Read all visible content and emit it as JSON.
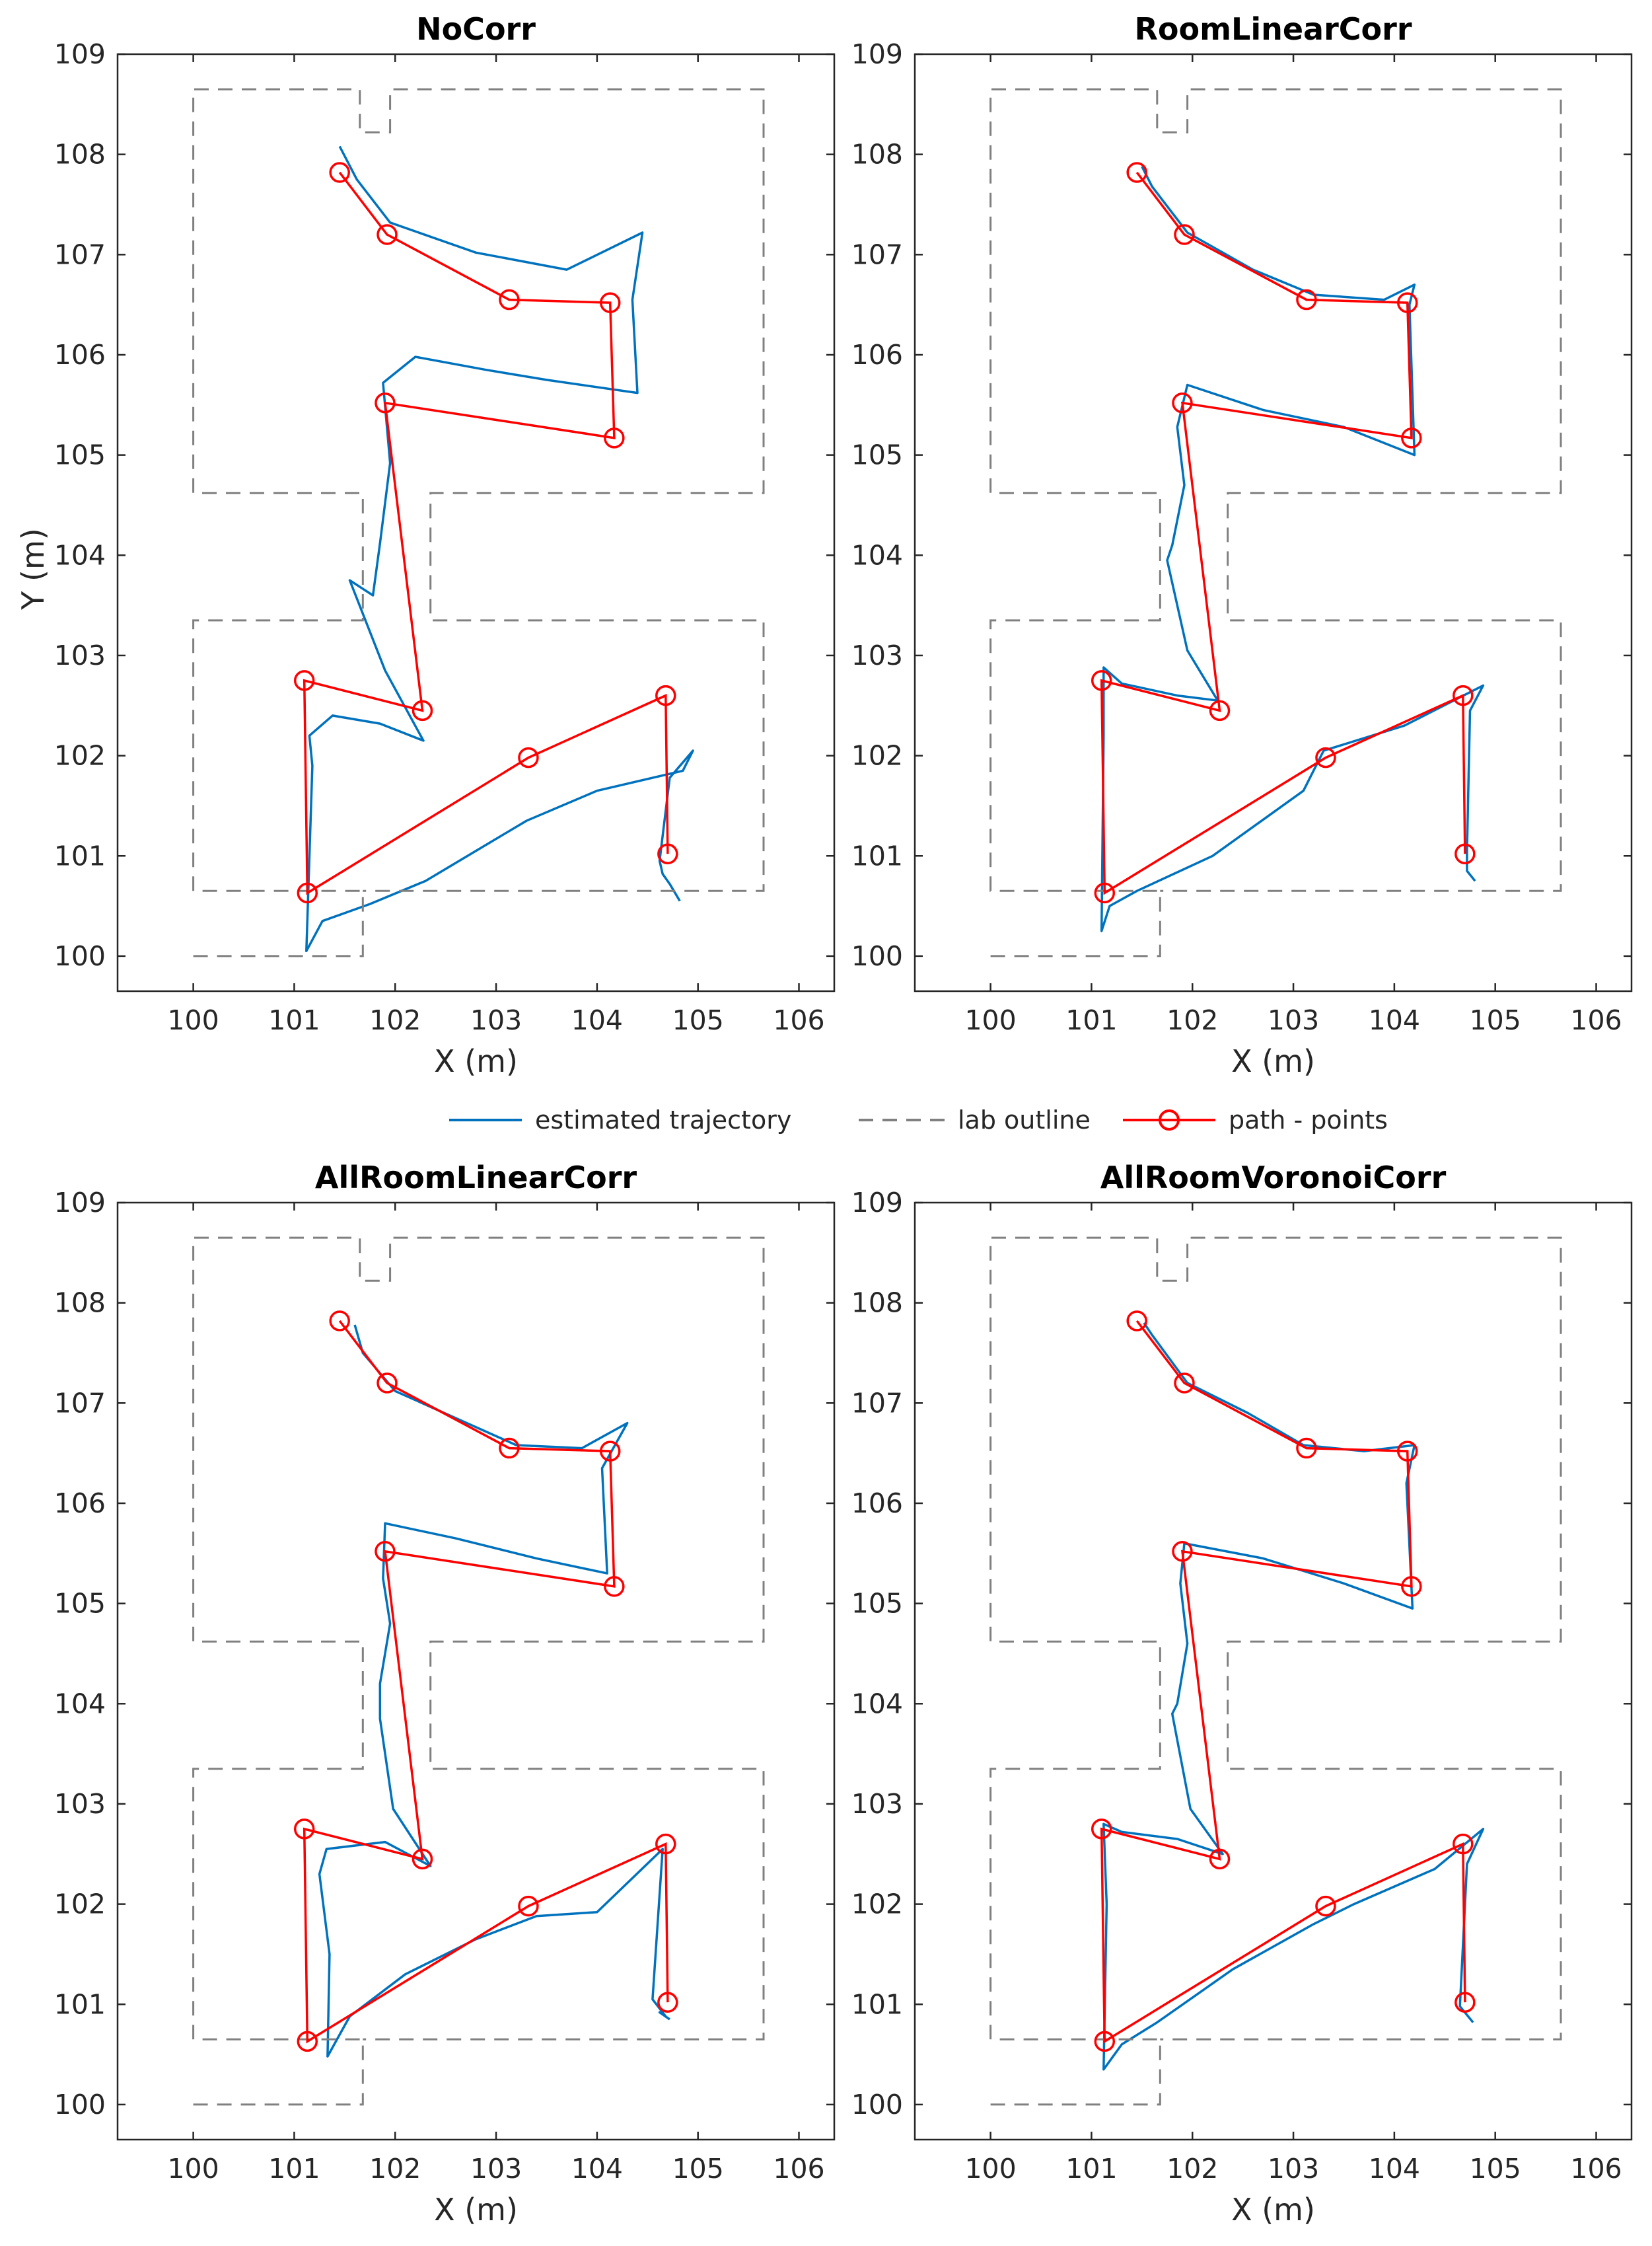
{
  "legend": {
    "trajectory_label": "estimated trajectory",
    "outline_label": "lab outline",
    "path_label": "path - points"
  },
  "colors": {
    "trajectory": "#0072BD",
    "outline": "#808080",
    "path": "#FF0000",
    "axis": "#262626"
  },
  "chart_data": [
    {
      "type": "line",
      "title": "NoCorr",
      "xlabel": "X (m)",
      "ylabel": "Y (m)",
      "xlim": [
        99.25,
        106.35
      ],
      "ylim": [
        99.65,
        109.0
      ],
      "xticks": [
        "100",
        "101",
        "102",
        "103",
        "104",
        "105",
        "106"
      ],
      "yticks": [
        "100",
        "101",
        "102",
        "103",
        "104",
        "105",
        "106",
        "107",
        "108",
        "109"
      ],
      "series": [
        {
          "name": "path - points",
          "x": [
            101.45,
            101.92,
            103.13,
            104.13,
            104.17,
            101.9,
            102.27,
            101.1,
            101.13,
            103.32,
            104.68,
            104.7
          ],
          "y": [
            107.82,
            107.2,
            106.55,
            106.52,
            105.17,
            105.52,
            102.45,
            102.75,
            100.63,
            101.98,
            102.6,
            101.02
          ]
        },
        {
          "name": "estimated trajectory",
          "x": [
            101.45,
            101.62,
            101.95,
            102.8,
            103.7,
            104.45,
            104.35,
            104.4,
            103.5,
            102.9,
            102.2,
            101.88,
            101.95,
            101.85,
            101.78,
            101.55,
            101.9,
            102.28,
            101.85,
            101.38,
            101.15,
            101.18,
            101.12,
            101.28,
            101.75,
            102.3,
            103.3,
            104.0,
            104.85,
            104.95,
            104.72,
            104.62,
            104.65,
            104.72,
            104.82
          ],
          "y": [
            108.08,
            107.75,
            107.32,
            107.02,
            106.85,
            107.22,
            106.55,
            105.62,
            105.75,
            105.85,
            105.98,
            105.72,
            104.92,
            104.12,
            103.6,
            103.75,
            102.85,
            102.15,
            102.32,
            102.4,
            102.2,
            101.9,
            100.05,
            100.35,
            100.52,
            100.75,
            101.35,
            101.65,
            101.85,
            102.05,
            101.78,
            100.95,
            100.82,
            100.72,
            100.55
          ]
        },
        {
          "name": "lab outline",
          "x": [
            100.0,
            101.68,
            101.68,
            100.0,
            100.0,
            101.68,
            101.68,
            101.45,
            101.45,
            100.0,
            100.0,
            101.65,
            101.65,
            101.95,
            101.95,
            102.05,
            102.05,
            105.65,
            105.65,
            102.35,
            102.35,
            105.65,
            105.65,
            101.68
          ],
          "y": [
            100.0,
            100.0,
            100.65,
            100.65,
            103.35,
            103.35,
            104.62,
            104.62,
            104.62,
            104.62,
            108.65,
            108.65,
            108.22,
            108.22,
            108.65,
            108.65,
            108.65,
            108.65,
            104.62,
            104.62,
            103.35,
            103.35,
            100.65,
            100.65
          ],
          "dashed": true
        }
      ]
    },
    {
      "type": "line",
      "title": "RoomLinearCorr",
      "xlabel": "X (m)",
      "ylabel": "",
      "xlim": [
        99.25,
        106.35
      ],
      "ylim": [
        99.65,
        109.0
      ],
      "xticks": [
        "100",
        "101",
        "102",
        "103",
        "104",
        "105",
        "106"
      ],
      "yticks": [
        "100",
        "101",
        "102",
        "103",
        "104",
        "105",
        "106",
        "107",
        "108",
        "109"
      ],
      "series": [
        {
          "name": "path - points",
          "x": [
            101.45,
            101.92,
            103.13,
            104.13,
            104.17,
            101.9,
            102.27,
            101.1,
            101.13,
            103.32,
            104.68,
            104.7
          ],
          "y": [
            107.82,
            107.2,
            106.55,
            106.52,
            105.17,
            105.52,
            102.45,
            102.75,
            100.63,
            101.98,
            102.6,
            101.02
          ]
        },
        {
          "name": "estimated trajectory",
          "x": [
            101.5,
            101.6,
            101.95,
            102.6,
            103.2,
            103.9,
            104.2,
            104.15,
            104.2,
            103.5,
            102.7,
            101.95,
            101.85,
            101.92,
            101.8,
            101.75,
            101.95,
            102.25,
            101.85,
            101.3,
            101.12,
            101.12,
            101.1,
            101.18,
            101.45,
            102.2,
            103.1,
            103.3,
            104.1,
            104.88,
            104.75,
            104.72,
            104.72,
            104.8
          ],
          "y": [
            107.88,
            107.68,
            107.22,
            106.85,
            106.6,
            106.55,
            106.7,
            106.5,
            105.0,
            105.28,
            105.45,
            105.7,
            105.28,
            104.7,
            104.1,
            103.95,
            103.05,
            102.55,
            102.6,
            102.72,
            102.88,
            102.2,
            100.25,
            100.5,
            100.65,
            101.0,
            101.65,
            102.05,
            102.3,
            102.7,
            102.45,
            101.05,
            100.85,
            100.75
          ]
        },
        {
          "name": "lab outline",
          "x": [
            100.0,
            101.68,
            101.68,
            100.0,
            100.0,
            101.68,
            101.68,
            101.45,
            101.45,
            100.0,
            100.0,
            101.65,
            101.65,
            101.95,
            101.95,
            102.05,
            102.05,
            105.65,
            105.65,
            102.35,
            102.35,
            105.65,
            105.65,
            101.68
          ],
          "y": [
            100.0,
            100.0,
            100.65,
            100.65,
            103.35,
            103.35,
            104.62,
            104.62,
            104.62,
            104.62,
            108.65,
            108.65,
            108.22,
            108.22,
            108.65,
            108.65,
            108.65,
            108.65,
            104.62,
            104.62,
            103.35,
            103.35,
            100.65,
            100.65
          ],
          "dashed": true
        }
      ]
    },
    {
      "type": "line",
      "title": "AllRoomLinearCorr",
      "xlabel": "X (m)",
      "ylabel": "",
      "xlim": [
        99.25,
        106.35
      ],
      "ylim": [
        99.65,
        109.0
      ],
      "xticks": [
        "100",
        "101",
        "102",
        "103",
        "104",
        "105",
        "106"
      ],
      "yticks": [
        "100",
        "101",
        "102",
        "103",
        "104",
        "105",
        "106",
        "107",
        "108",
        "109"
      ],
      "series": [
        {
          "name": "path - points",
          "x": [
            101.45,
            101.92,
            103.13,
            104.13,
            104.17,
            101.9,
            102.27,
            101.1,
            101.13,
            103.32,
            104.68,
            104.7
          ],
          "y": [
            107.82,
            107.2,
            106.55,
            106.52,
            105.17,
            105.52,
            102.45,
            102.75,
            100.63,
            101.98,
            102.6,
            101.02
          ]
        },
        {
          "name": "estimated trajectory",
          "x": [
            101.6,
            101.68,
            102.0,
            102.6,
            103.2,
            103.85,
            104.3,
            104.05,
            104.1,
            103.4,
            102.6,
            101.9,
            101.88,
            101.95,
            101.85,
            101.85,
            101.98,
            102.35,
            101.9,
            101.32,
            101.25,
            101.35,
            101.33,
            101.55,
            102.1,
            102.8,
            103.4,
            104.0,
            104.65,
            104.55,
            104.68,
            104.62,
            104.72
          ],
          "y": [
            107.78,
            107.5,
            107.12,
            106.85,
            106.58,
            106.55,
            106.8,
            106.35,
            105.3,
            105.45,
            105.65,
            105.8,
            105.25,
            104.8,
            104.2,
            103.85,
            102.95,
            102.38,
            102.62,
            102.55,
            102.3,
            101.5,
            100.48,
            100.88,
            101.3,
            101.65,
            101.88,
            101.92,
            102.55,
            101.05,
            100.88,
            100.92,
            100.85
          ]
        },
        {
          "name": "lab outline",
          "x": [
            100.0,
            101.68,
            101.68,
            100.0,
            100.0,
            101.68,
            101.68,
            101.45,
            101.45,
            100.0,
            100.0,
            101.65,
            101.65,
            101.95,
            101.95,
            102.05,
            102.05,
            105.65,
            105.65,
            102.35,
            102.35,
            105.65,
            105.65,
            101.68
          ],
          "y": [
            100.0,
            100.0,
            100.65,
            100.65,
            103.35,
            103.35,
            104.62,
            104.62,
            104.62,
            104.62,
            108.65,
            108.65,
            108.22,
            108.22,
            108.65,
            108.65,
            108.65,
            108.65,
            104.62,
            104.62,
            103.35,
            103.35,
            100.65,
            100.65
          ],
          "dashed": true
        }
      ]
    },
    {
      "type": "line",
      "title": "AllRoomVoronoiCorr",
      "xlabel": "X (m)",
      "ylabel": "",
      "xlim": [
        99.25,
        106.35
      ],
      "ylim": [
        99.65,
        109.0
      ],
      "xticks": [
        "100",
        "101",
        "102",
        "103",
        "104",
        "105",
        "106"
      ],
      "yticks": [
        "100",
        "101",
        "102",
        "103",
        "104",
        "105",
        "106",
        "107",
        "108",
        "109"
      ],
      "series": [
        {
          "name": "path - points",
          "x": [
            101.45,
            101.92,
            103.13,
            104.13,
            104.17,
            101.9,
            102.27,
            101.1,
            101.13,
            103.32,
            104.68,
            104.7
          ],
          "y": [
            107.82,
            107.2,
            106.55,
            106.52,
            105.17,
            105.52,
            102.45,
            102.75,
            100.63,
            101.98,
            102.6,
            101.02
          ]
        },
        {
          "name": "estimated trajectory",
          "x": [
            101.52,
            101.6,
            101.95,
            102.55,
            103.1,
            103.7,
            104.2,
            104.12,
            104.18,
            103.5,
            102.7,
            101.92,
            101.88,
            101.95,
            101.85,
            101.8,
            101.98,
            102.3,
            101.85,
            101.3,
            101.12,
            101.15,
            101.12,
            101.3,
            101.65,
            102.4,
            103.2,
            103.6,
            104.4,
            104.88,
            104.72,
            104.65,
            104.78
          ],
          "y": [
            107.8,
            107.68,
            107.2,
            106.9,
            106.58,
            106.52,
            106.58,
            106.2,
            104.95,
            105.2,
            105.45,
            105.6,
            105.2,
            104.6,
            104.0,
            103.9,
            102.95,
            102.5,
            102.65,
            102.72,
            102.8,
            102.0,
            100.35,
            100.6,
            100.82,
            101.35,
            101.8,
            102.0,
            102.35,
            102.75,
            102.4,
            100.98,
            100.82
          ]
        },
        {
          "name": "lab outline",
          "x": [
            100.0,
            101.68,
            101.68,
            100.0,
            100.0,
            101.68,
            101.68,
            101.45,
            101.45,
            100.0,
            100.0,
            101.65,
            101.65,
            101.95,
            101.95,
            102.05,
            102.05,
            105.65,
            105.65,
            102.35,
            102.35,
            105.65,
            105.65,
            101.68
          ],
          "y": [
            100.0,
            100.0,
            100.65,
            100.65,
            103.35,
            103.35,
            104.62,
            104.62,
            104.62,
            104.62,
            108.65,
            108.65,
            108.22,
            108.22,
            108.65,
            108.65,
            108.65,
            108.65,
            104.62,
            104.62,
            103.35,
            103.35,
            100.65,
            100.65
          ],
          "dashed": true
        }
      ]
    }
  ]
}
